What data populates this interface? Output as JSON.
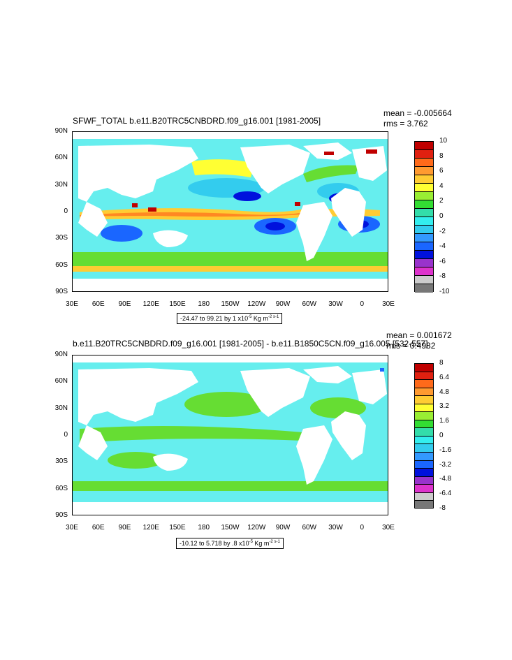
{
  "panels": [
    {
      "title": "SFWF_TOTAL b.e11.B20TRC5CNBDRD.f09_g16.001 [1981-2005]",
      "mean": "mean = -0.005664",
      "rms": "rms = 3.762",
      "range_text": "-24.47 to 99.21 by 1 x10",
      "range_exp": "-5",
      "range_unit": " Kg m",
      "range_unit_exp": "-2 s-1",
      "colorbar": {
        "labels": [
          "10",
          "8",
          "6",
          "4",
          "2",
          "0",
          "-2",
          "-4",
          "-6",
          "-8",
          "-10"
        ],
        "colors": [
          "#c00000",
          "#e02010",
          "#ff6a1a",
          "#ff9a30",
          "#ffcc33",
          "#ffff33",
          "#99ee33",
          "#33dd33",
          "#33ddaa",
          "#33eeee",
          "#33ccee",
          "#3399ff",
          "#1a66ff",
          "#0011dd",
          "#9933cc",
          "#dd33cc",
          "#cccccc",
          "#777777"
        ]
      }
    },
    {
      "title": "b.e11.B20TRC5CNBDRD.f09_g16.001 [1981-2005] - b.e11.B1850C5CN.f09_g16.005 [532-557]",
      "mean": "mean = 0.001672",
      "rms": "rms = 0.4982",
      "range_text": "-10.12 to 5.718 by .8 x10",
      "range_exp": "-5",
      "range_unit": " Kg m",
      "range_unit_exp": "-2 s-1",
      "colorbar": {
        "labels": [
          "8",
          "6.4",
          "4.8",
          "3.2",
          "1.6",
          "0",
          "-1.6",
          "-3.2",
          "-4.8",
          "-6.4",
          "-8"
        ],
        "colors": [
          "#c00000",
          "#e02010",
          "#ff6a1a",
          "#ff9a30",
          "#ffcc33",
          "#ffff33",
          "#99ee33",
          "#33dd33",
          "#33ddaa",
          "#33eeee",
          "#33ccee",
          "#3399ff",
          "#1a66ff",
          "#0011dd",
          "#9933cc",
          "#dd33cc",
          "#cccccc",
          "#777777"
        ]
      }
    }
  ],
  "lat_labels": [
    "90N",
    "60N",
    "30N",
    "0",
    "30S",
    "60S",
    "90S"
  ],
  "lon_labels": [
    "30E",
    "60E",
    "90E",
    "120E",
    "150E",
    "180",
    "150W",
    "120W",
    "90W",
    "60W",
    "30W",
    "0",
    "30E"
  ]
}
